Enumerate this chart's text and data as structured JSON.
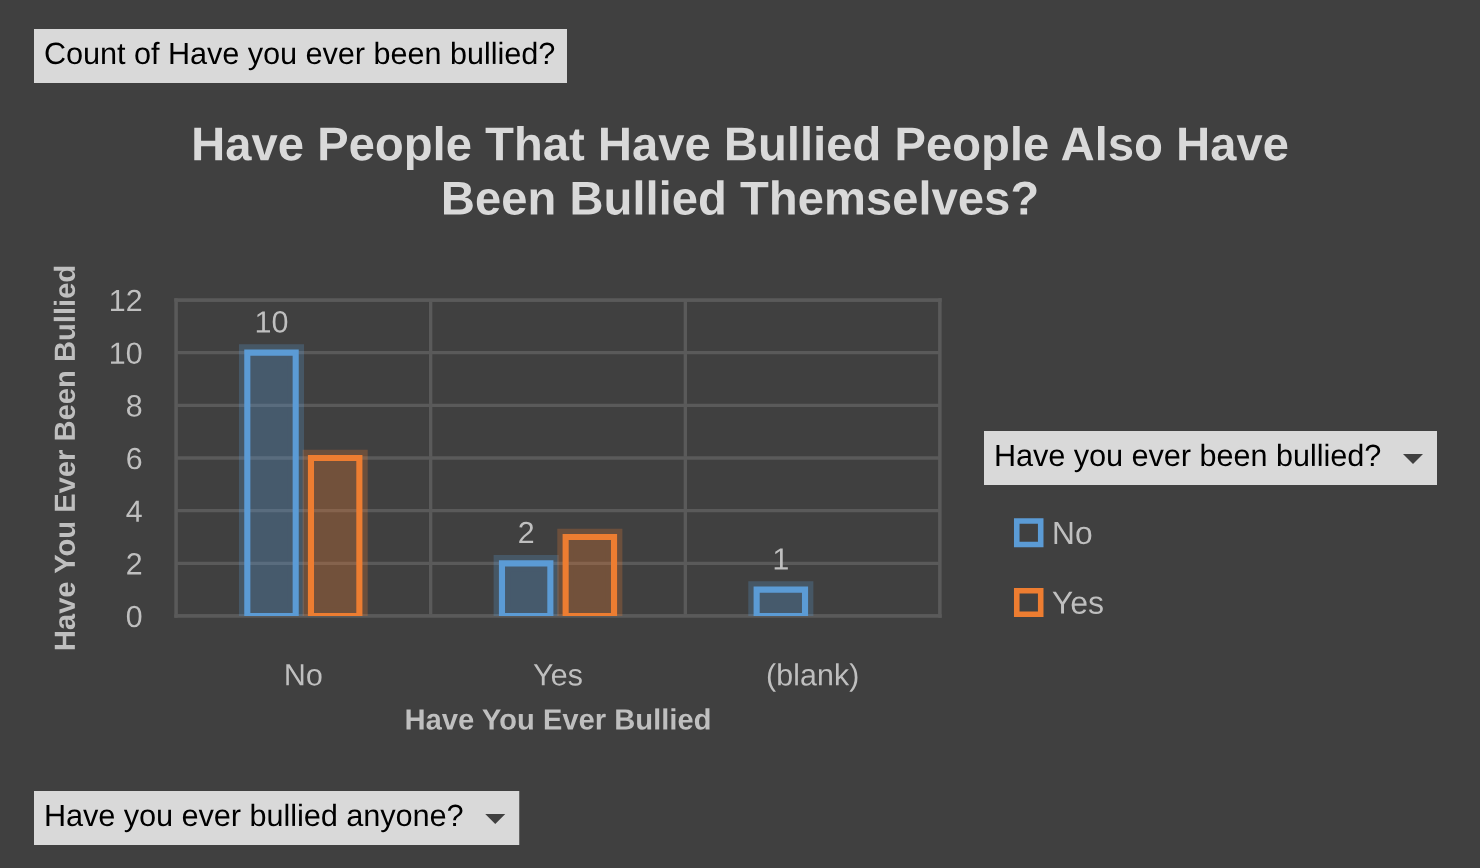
{
  "chart_data": {
    "type": "bar",
    "title": "Have People That Have Bullied People Also Have\nBeen Bullied Themselves?",
    "xlabel": "Have You Ever Bullied",
    "ylabel": "Have You Ever Been Bullied",
    "legend_title": "Have you ever been bullied?",
    "annotations": [
      "Count of Have you ever been bullied?",
      "Have you ever bullied anyone?"
    ],
    "categories": [
      "No",
      "Yes",
      "(blank)"
    ],
    "series": [
      {
        "name": "No",
        "color": "#5b9bd5",
        "values": [
          10,
          2,
          1
        ],
        "value_labels": [
          "10",
          "2",
          "1"
        ]
      },
      {
        "name": "Yes",
        "color": "#ed7d31",
        "values": [
          6,
          3,
          null
        ]
      }
    ],
    "ylim": [
      0,
      12
    ],
    "yticks": [
      0,
      2,
      4,
      6,
      8,
      10,
      12
    ],
    "grid": true,
    "legend": "right"
  }
}
